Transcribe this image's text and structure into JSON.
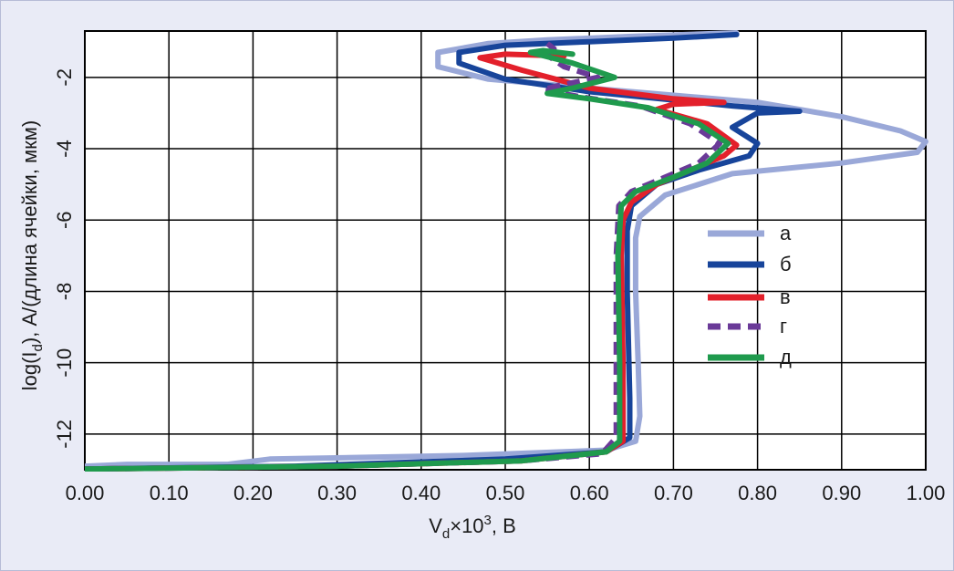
{
  "chart_data": {
    "type": "line",
    "xlabel": "V_d×10³, В",
    "ylabel": "log(I_d), А/(длина ячейки, мкм)",
    "xlim": [
      0.0,
      1.0
    ],
    "ylim": [
      -13.0,
      -0.7
    ],
    "x_ticks": [
      "0.00",
      "0.10",
      "0.20",
      "0.30",
      "0.40",
      "0.50",
      "0.60",
      "0.70",
      "0.80",
      "0.90",
      "1.00"
    ],
    "y_ticks": [
      "-2",
      "-4",
      "-6",
      "-8",
      "-10",
      "-12"
    ],
    "grid": true,
    "legend_position": "right",
    "series": [
      {
        "name": "а",
        "color": "#9aa8d8",
        "dash": false,
        "points": [
          [
            0.0,
            -12.9
          ],
          [
            0.05,
            -12.85
          ],
          [
            0.17,
            -12.85
          ],
          [
            0.22,
            -12.7
          ],
          [
            0.45,
            -12.6
          ],
          [
            0.62,
            -12.45
          ],
          [
            0.655,
            -12.2
          ],
          [
            0.66,
            -11.5
          ],
          [
            0.658,
            -10
          ],
          [
            0.655,
            -8
          ],
          [
            0.655,
            -6.5
          ],
          [
            0.66,
            -5.9
          ],
          [
            0.69,
            -5.3
          ],
          [
            0.77,
            -4.7
          ],
          [
            0.9,
            -4.4
          ],
          [
            0.99,
            -4.1
          ],
          [
            1.0,
            -3.8
          ],
          [
            0.97,
            -3.5
          ],
          [
            0.9,
            -3.1
          ],
          [
            0.8,
            -2.7
          ],
          [
            0.6,
            -2.3
          ],
          [
            0.48,
            -2.05
          ],
          [
            0.42,
            -1.7
          ],
          [
            0.42,
            -1.3
          ],
          [
            0.48,
            -1.05
          ],
          [
            0.55,
            -0.95
          ],
          [
            0.65,
            -0.85
          ],
          [
            0.775,
            -0.75
          ]
        ]
      },
      {
        "name": "б",
        "color": "#17449a",
        "dash": false,
        "points": [
          [
            0.0,
            -12.98
          ],
          [
            0.25,
            -12.9
          ],
          [
            0.5,
            -12.7
          ],
          [
            0.62,
            -12.5
          ],
          [
            0.648,
            -12.1
          ],
          [
            0.648,
            -11
          ],
          [
            0.645,
            -8
          ],
          [
            0.645,
            -6.3
          ],
          [
            0.65,
            -5.6
          ],
          [
            0.68,
            -5.0
          ],
          [
            0.73,
            -4.6
          ],
          [
            0.79,
            -4.2
          ],
          [
            0.8,
            -3.85
          ],
          [
            0.77,
            -3.4
          ],
          [
            0.8,
            -3.0
          ],
          [
            0.85,
            -2.95
          ],
          [
            0.77,
            -2.8
          ],
          [
            0.6,
            -2.4
          ],
          [
            0.5,
            -2.05
          ],
          [
            0.445,
            -1.6
          ],
          [
            0.445,
            -1.3
          ],
          [
            0.5,
            -1.1
          ],
          [
            0.6,
            -1.0
          ],
          [
            0.7,
            -0.9
          ],
          [
            0.775,
            -0.8
          ]
        ]
      },
      {
        "name": "в",
        "color": "#e3202b",
        "dash": false,
        "points": [
          [
            0.0,
            -12.98
          ],
          [
            0.3,
            -12.9
          ],
          [
            0.52,
            -12.75
          ],
          [
            0.62,
            -12.5
          ],
          [
            0.64,
            -12.2
          ],
          [
            0.64,
            -10
          ],
          [
            0.638,
            -7
          ],
          [
            0.64,
            -6.0
          ],
          [
            0.65,
            -5.5
          ],
          [
            0.68,
            -5.0
          ],
          [
            0.72,
            -4.6
          ],
          [
            0.76,
            -4.2
          ],
          [
            0.775,
            -3.9
          ],
          [
            0.74,
            -3.3
          ],
          [
            0.68,
            -2.9
          ],
          [
            0.7,
            -2.75
          ],
          [
            0.76,
            -2.7
          ],
          [
            0.7,
            -2.6
          ],
          [
            0.6,
            -2.3
          ],
          [
            0.52,
            -1.8
          ],
          [
            0.47,
            -1.45
          ],
          [
            0.5,
            -1.35
          ],
          [
            0.57,
            -1.4
          ]
        ]
      },
      {
        "name": "г",
        "color": "#6a3a98",
        "dash": true,
        "points": [
          [
            0.0,
            -12.98
          ],
          [
            0.3,
            -12.9
          ],
          [
            0.52,
            -12.75
          ],
          [
            0.615,
            -12.55
          ],
          [
            0.632,
            -12.1
          ],
          [
            0.632,
            -10
          ],
          [
            0.632,
            -7
          ],
          [
            0.635,
            -5.6
          ],
          [
            0.65,
            -5.2
          ],
          [
            0.69,
            -4.8
          ],
          [
            0.73,
            -4.4
          ],
          [
            0.755,
            -3.85
          ],
          [
            0.72,
            -3.3
          ],
          [
            0.66,
            -2.8
          ],
          [
            0.59,
            -2.55
          ],
          [
            0.545,
            -2.35
          ],
          [
            0.56,
            -2.25
          ],
          [
            0.61,
            -2.0
          ],
          [
            0.57,
            -1.7
          ],
          [
            0.545,
            -1.3
          ],
          [
            0.558,
            -1.2
          ],
          [
            0.55,
            -1.05
          ]
        ]
      },
      {
        "name": "д",
        "color": "#1f9a4d",
        "dash": false,
        "points": [
          [
            0.0,
            -12.98
          ],
          [
            0.3,
            -12.9
          ],
          [
            0.52,
            -12.75
          ],
          [
            0.62,
            -12.5
          ],
          [
            0.636,
            -12.2
          ],
          [
            0.636,
            -10
          ],
          [
            0.634,
            -7
          ],
          [
            0.638,
            -5.6
          ],
          [
            0.655,
            -5.2
          ],
          [
            0.7,
            -4.8
          ],
          [
            0.74,
            -4.4
          ],
          [
            0.765,
            -3.85
          ],
          [
            0.73,
            -3.3
          ],
          [
            0.67,
            -2.85
          ],
          [
            0.6,
            -2.6
          ],
          [
            0.55,
            -2.45
          ],
          [
            0.58,
            -2.3
          ],
          [
            0.63,
            -2.0
          ],
          [
            0.58,
            -1.6
          ],
          [
            0.53,
            -1.3
          ],
          [
            0.545,
            -1.25
          ],
          [
            0.58,
            -1.35
          ]
        ]
      }
    ]
  }
}
